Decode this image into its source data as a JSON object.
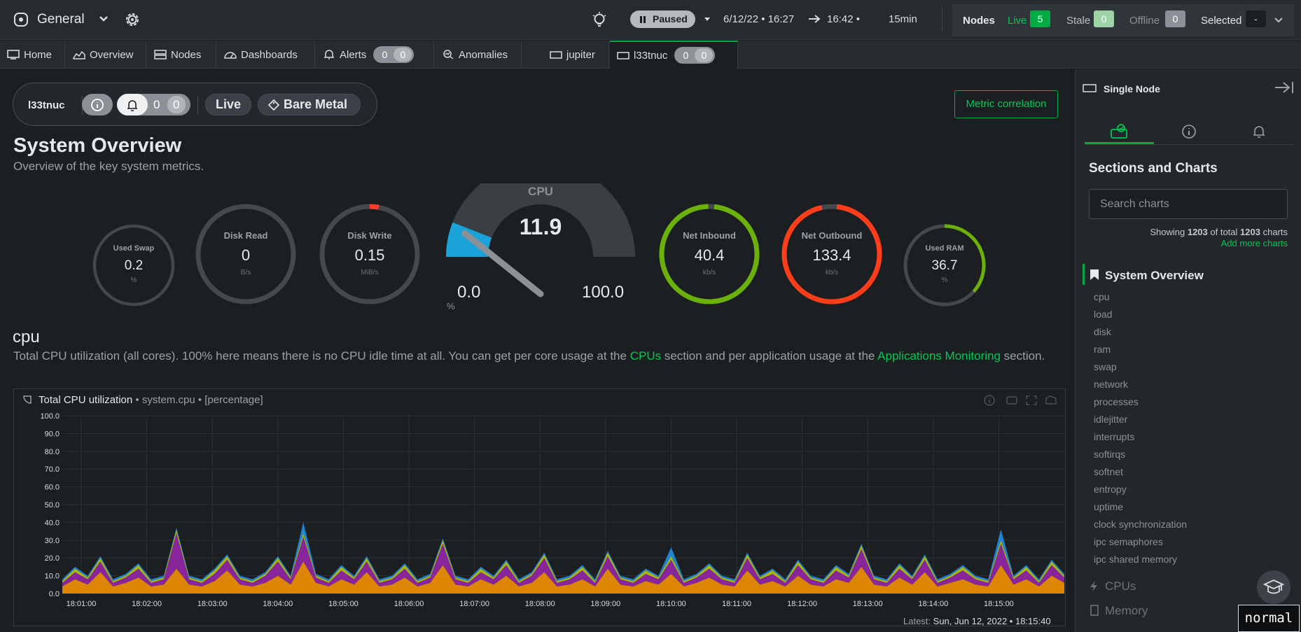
{
  "topbar": {
    "space_name": "General",
    "paused_label": "Paused",
    "time_from": "6/12/22 • 16:27",
    "time_to": "16:42 •",
    "duration": "15min",
    "nodes_label": "Nodes",
    "live_label": "Live",
    "live_count": "5",
    "stale_label": "Stale",
    "stale_count": "0",
    "offline_label": "Offline",
    "offline_count": "0",
    "selected_label": "Selected",
    "selected_value": "-"
  },
  "tabs": [
    {
      "label": "Home",
      "icon": "monitor-icon"
    },
    {
      "label": "Overview",
      "icon": "overview-icon"
    },
    {
      "label": "Nodes",
      "icon": "nodes-icon"
    },
    {
      "label": "Dashboards",
      "icon": "dashboard-icon"
    },
    {
      "label": "Alerts",
      "icon": "bell-icon",
      "badge": [
        "0",
        "0"
      ]
    },
    {
      "label": "Anomalies",
      "icon": "anomaly-icon"
    },
    {
      "label": "jupiter",
      "icon": "node-icon"
    },
    {
      "label": "l33tnuc",
      "icon": "node-icon",
      "badge": [
        "0",
        "0"
      ]
    }
  ],
  "node_card": {
    "name": "l33tnuc",
    "alerts_a": "0",
    "alerts_b": "0",
    "live_label": "Live",
    "type_label": "Bare Metal"
  },
  "metric_correlation_label": "Metric correlation",
  "section": {
    "title": "System Overview",
    "subtitle": "Overview of the key system metrics."
  },
  "gauges": {
    "used_swap": {
      "label": "Used Swap",
      "value": "0.2",
      "unit": "%",
      "fraction": 0.002,
      "color": "#555b61"
    },
    "disk_read": {
      "label": "Disk Read",
      "value": "0",
      "unit": "B/s",
      "fraction": 0.0,
      "color": "#555b61"
    },
    "disk_write": {
      "label": "Disk Write",
      "value": "0.15",
      "unit": "MiB/s",
      "fraction": 0.03,
      "color": "#ff3d2e"
    },
    "cpu": {
      "label": "CPU",
      "value": "11.9",
      "min": "0.0",
      "max": "100.0",
      "unit": "%",
      "fraction": 0.119,
      "color": "#1aa3d9"
    },
    "net_inbound": {
      "label": "Net Inbound",
      "value": "40.4",
      "unit": "kb/s",
      "fraction": 0.98,
      "color": "#6bb10a"
    },
    "net_outbound": {
      "label": "Net Outbound",
      "value": "133.4",
      "unit": "kb/s",
      "fraction": 0.95,
      "color": "#ff3d1a"
    },
    "used_ram": {
      "label": "Used RAM",
      "value": "36.7",
      "unit": "%",
      "fraction": 0.367,
      "color": "#6bb10a"
    }
  },
  "cpu_section": {
    "title": "cpu",
    "desc_1": "Total CPU utilization (all cores). 100% here means there is no CPU idle time at all. You can get per core usage at the ",
    "link_1": "CPUs",
    "desc_2": " section and per application usage at the ",
    "link_2": "Applications Monitoring",
    "desc_3": " section."
  },
  "chart_data": {
    "type": "area",
    "title": "Total CPU utilization",
    "context": "• system.cpu • [percentage]",
    "ylim": [
      0,
      100
    ],
    "y_ticks": [
      "100.0",
      "90.0",
      "80.0",
      "70.0",
      "60.0",
      "50.0",
      "40.0",
      "30.0",
      "20.0",
      "10.0",
      "0.0"
    ],
    "x_ticks": [
      "18:01:00",
      "18:02:00",
      "18:03:00",
      "18:04:00",
      "18:05:00",
      "18:06:00",
      "18:07:00",
      "18:08:00",
      "18:09:00",
      "18:10:00",
      "18:11:00",
      "18:12:00",
      "18:13:00",
      "18:14:00",
      "18:15:00"
    ],
    "series": [
      {
        "color": "#ff9800",
        "values": [
          4,
          8,
          5,
          12,
          4,
          6,
          9,
          4,
          5,
          14,
          5,
          4,
          7,
          13,
          5,
          4,
          6,
          10,
          5,
          18,
          6,
          4,
          8,
          5,
          12,
          4,
          5,
          9,
          4,
          6,
          16,
          5,
          4,
          8,
          5,
          10,
          4,
          6,
          12,
          4,
          5,
          8,
          4,
          14,
          5,
          4,
          7,
          5,
          11,
          4,
          6,
          9,
          5,
          4,
          13,
          5,
          7,
          4,
          10,
          5,
          4,
          8,
          6,
          15,
          5,
          4,
          9,
          5,
          12,
          4,
          6,
          8,
          5,
          4,
          16,
          5,
          8,
          4,
          10,
          6
        ]
      },
      {
        "color": "#9c27b0",
        "values": [
          2,
          4,
          3,
          6,
          2,
          3,
          5,
          2,
          3,
          20,
          3,
          2,
          4,
          6,
          3,
          2,
          4,
          8,
          3,
          14,
          3,
          2,
          5,
          3,
          6,
          2,
          3,
          5,
          2,
          3,
          12,
          3,
          2,
          4,
          3,
          6,
          2,
          4,
          8,
          2,
          3,
          5,
          2,
          7,
          3,
          2,
          4,
          3,
          8,
          2,
          3,
          5,
          3,
          2,
          7,
          3,
          4,
          2,
          6,
          3,
          2,
          5,
          3,
          10,
          3,
          2,
          5,
          3,
          7,
          2,
          3,
          5,
          3,
          2,
          12,
          3,
          5,
          2,
          6,
          3
        ]
      },
      {
        "color": "#c6d400",
        "values": [
          1,
          2,
          1,
          2,
          1,
          1,
          2,
          1,
          1,
          2,
          1,
          1,
          2,
          2,
          1,
          1,
          1,
          2,
          1,
          2,
          1,
          1,
          2,
          1,
          2,
          1,
          1,
          2,
          1,
          1,
          2,
          1,
          1,
          2,
          1,
          2,
          1,
          1,
          2,
          1,
          1,
          2,
          1,
          2,
          1,
          1,
          2,
          1,
          2,
          1,
          1,
          2,
          1,
          1,
          2,
          1,
          2,
          1,
          2,
          1,
          1,
          2,
          1,
          2,
          1,
          1,
          2,
          1,
          2,
          1,
          1,
          2,
          1,
          1,
          2,
          1,
          2,
          1,
          2,
          1
        ]
      },
      {
        "color": "#2196f3",
        "values": [
          1,
          1,
          1,
          1,
          1,
          1,
          1,
          1,
          1,
          1,
          1,
          1,
          1,
          1,
          1,
          1,
          1,
          1,
          1,
          6,
          1,
          1,
          1,
          1,
          1,
          1,
          1,
          1,
          1,
          1,
          1,
          1,
          1,
          1,
          1,
          1,
          1,
          1,
          1,
          1,
          1,
          1,
          1,
          1,
          1,
          1,
          1,
          1,
          5,
          1,
          1,
          1,
          1,
          1,
          1,
          1,
          1,
          1,
          1,
          1,
          1,
          1,
          1,
          1,
          1,
          1,
          1,
          1,
          1,
          1,
          1,
          1,
          1,
          1,
          6,
          1,
          1,
          1,
          1,
          1
        ]
      }
    ],
    "latest_label": "Latest:",
    "latest_value": "Sun, Jun 12, 2022 • 18:15:40"
  },
  "sidebar": {
    "header": "Single Node",
    "title": "Sections and Charts",
    "search_placeholder": "Search charts",
    "count_prefix": "Showing",
    "count_shown": "1203",
    "count_mid": "of total",
    "count_total": "1203",
    "count_suffix": "charts",
    "add_more": "Add more charts",
    "active_section": "System Overview",
    "items": [
      "cpu",
      "load",
      "disk",
      "ram",
      "swap",
      "network",
      "processes",
      "idlejitter",
      "interrupts",
      "softirqs",
      "softnet",
      "entropy",
      "uptime",
      "clock synchronization",
      "ipc semaphores",
      "ipc shared memory"
    ],
    "next_sections": [
      "CPUs",
      "Memory"
    ]
  },
  "mode_indicator": "normal"
}
